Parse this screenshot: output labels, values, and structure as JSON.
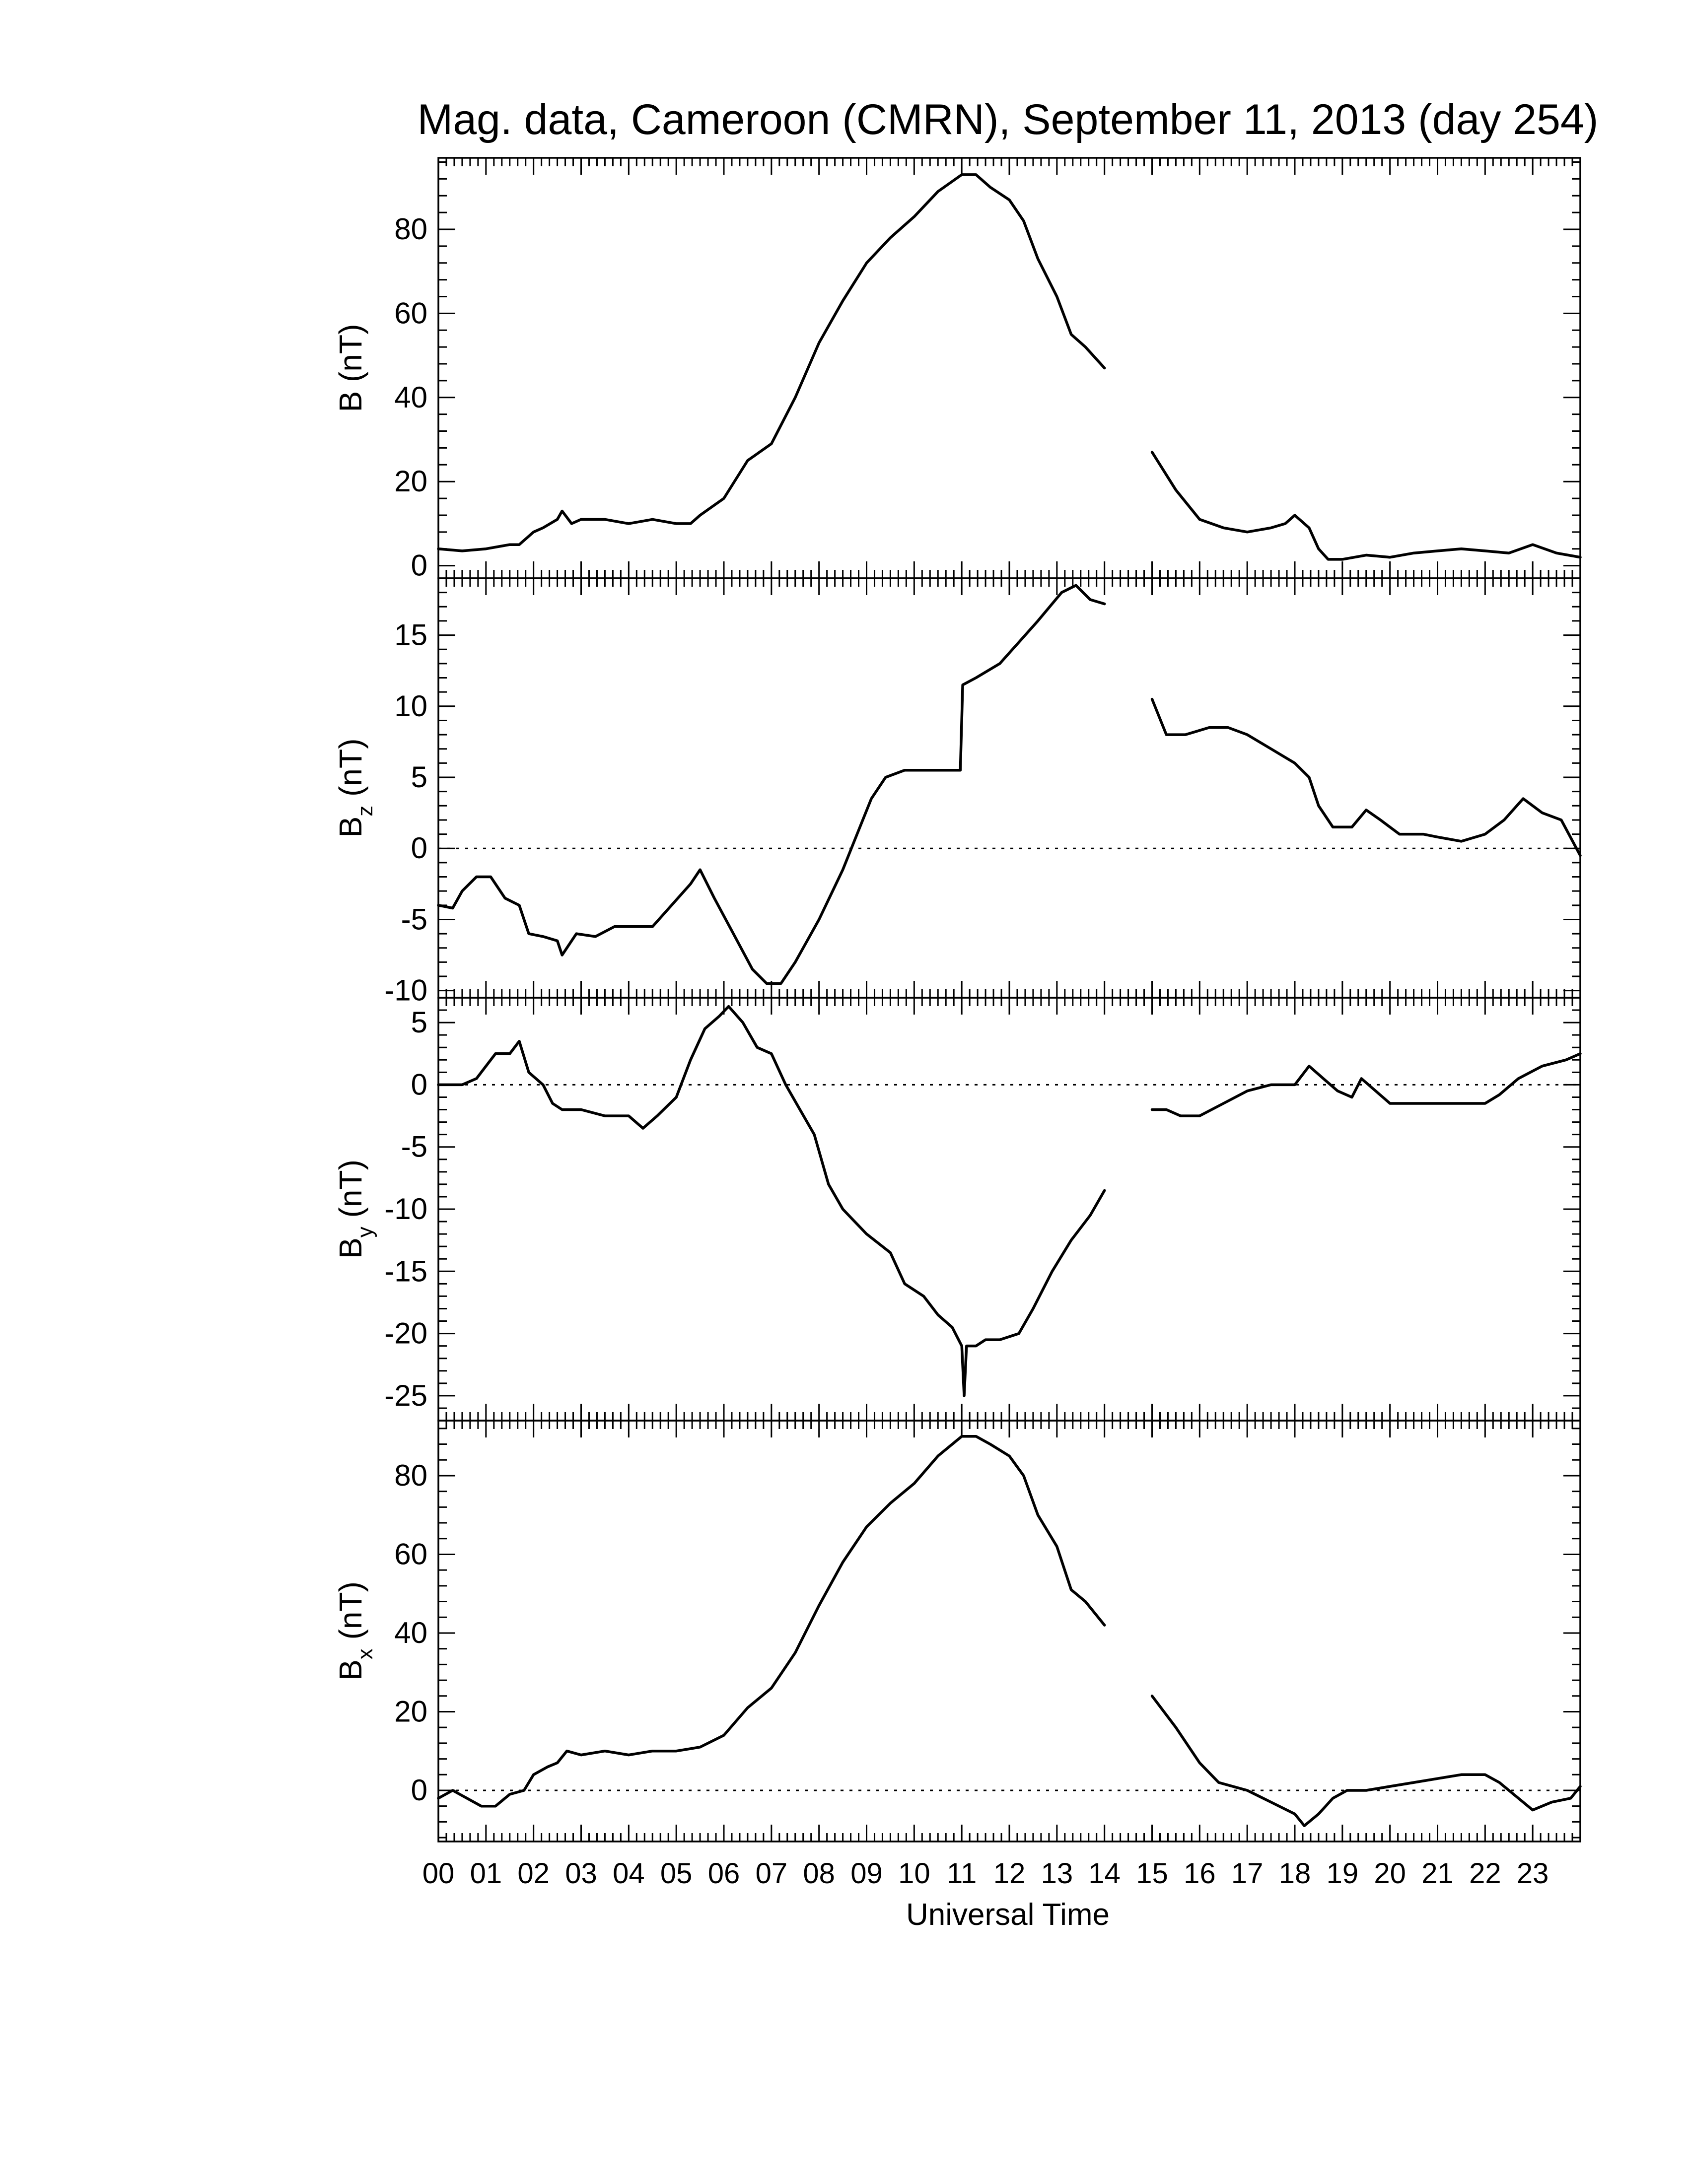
{
  "chart_data": {
    "type": "line",
    "title": "Mag. data, Cameroon (CMRN), September 11, 2013 (day 254)",
    "xlabel": "Universal Time",
    "xlim": [
      0,
      24
    ],
    "x_tick_labels": [
      "00",
      "01",
      "02",
      "03",
      "04",
      "05",
      "06",
      "07",
      "08",
      "09",
      "10",
      "11",
      "12",
      "13",
      "14",
      "15",
      "16",
      "17",
      "18",
      "19",
      "20",
      "21",
      "22",
      "23"
    ],
    "grid": false,
    "data_gap_hours": [
      14.0,
      15.0
    ],
    "panels": [
      {
        "id": "B",
        "ylabel": "B (nT)",
        "ylabel_main": "B",
        "ylabel_sub": "",
        "ylabel_unit": " (nT)",
        "ylim": [
          -3,
          97
        ],
        "yticks": [
          0,
          20,
          40,
          60,
          80
        ],
        "ytick_labels": [
          "0",
          "20",
          "40",
          "60",
          "80"
        ],
        "zero_line": false,
        "segments": [
          [
            [
              0,
              4
            ],
            [
              0.5,
              3.5
            ],
            [
              1,
              4
            ],
            [
              1.5,
              5
            ],
            [
              1.7,
              5
            ],
            [
              2,
              8
            ],
            [
              2.2,
              9
            ],
            [
              2.5,
              11
            ],
            [
              2.6,
              13
            ],
            [
              2.8,
              10
            ],
            [
              3,
              11
            ],
            [
              3.5,
              11
            ],
            [
              4,
              10
            ],
            [
              4.5,
              11
            ],
            [
              5,
              10
            ],
            [
              5.3,
              10
            ],
            [
              5.5,
              12
            ],
            [
              6,
              16
            ],
            [
              6.5,
              25
            ],
            [
              7,
              29
            ],
            [
              7.5,
              40
            ],
            [
              8,
              53
            ],
            [
              8.5,
              63
            ],
            [
              9,
              72
            ],
            [
              9.5,
              78
            ],
            [
              10,
              83
            ],
            [
              10.5,
              89
            ],
            [
              11,
              93
            ],
            [
              11.3,
              93
            ],
            [
              11.6,
              90
            ],
            [
              12,
              87
            ],
            [
              12.3,
              82
            ],
            [
              12.6,
              73
            ],
            [
              13,
              64
            ],
            [
              13.3,
              55
            ],
            [
              13.6,
              52
            ],
            [
              14,
              47
            ]
          ],
          [
            [
              15,
              27
            ],
            [
              15.5,
              18
            ],
            [
              16,
              11
            ],
            [
              16.5,
              9
            ],
            [
              17,
              8
            ],
            [
              17.5,
              9
            ],
            [
              17.8,
              10
            ],
            [
              18,
              12
            ],
            [
              18.3,
              9
            ],
            [
              18.5,
              4
            ],
            [
              18.7,
              1.5
            ],
            [
              19,
              1.5
            ],
            [
              19.5,
              2.5
            ],
            [
              20,
              2
            ],
            [
              20.5,
              3
            ],
            [
              21,
              3.5
            ],
            [
              21.5,
              4
            ],
            [
              22,
              3.5
            ],
            [
              22.5,
              3
            ],
            [
              23,
              5
            ],
            [
              23.5,
              3
            ],
            [
              24,
              2
            ]
          ]
        ]
      },
      {
        "id": "Bz",
        "ylabel": "Bz (nT)",
        "ylabel_main": "B",
        "ylabel_sub": "z",
        "ylabel_unit": " (nT)",
        "ylim": [
          -10.5,
          19
        ],
        "yticks": [
          -10,
          -5,
          0,
          5,
          10,
          15
        ],
        "ytick_labels": [
          "-10",
          "-5",
          "0",
          "5",
          "10",
          "15"
        ],
        "zero_line": true,
        "segments": [
          [
            [
              0,
              -4
            ],
            [
              0.3,
              -4.2
            ],
            [
              0.5,
              -3
            ],
            [
              0.8,
              -2
            ],
            [
              1.1,
              -2
            ],
            [
              1.4,
              -3.5
            ],
            [
              1.7,
              -4
            ],
            [
              1.9,
              -6
            ],
            [
              2.2,
              -6.2
            ],
            [
              2.5,
              -6.5
            ],
            [
              2.6,
              -7.5
            ],
            [
              2.9,
              -6
            ],
            [
              3.3,
              -6.2
            ],
            [
              3.7,
              -5.5
            ],
            [
              4,
              -5.5
            ],
            [
              4.5,
              -5.5
            ],
            [
              4.9,
              -4
            ],
            [
              5.3,
              -2.5
            ],
            [
              5.5,
              -1.5
            ],
            [
              5.8,
              -3.5
            ],
            [
              6.2,
              -6
            ],
            [
              6.6,
              -8.5
            ],
            [
              6.9,
              -9.5
            ],
            [
              7.2,
              -9.5
            ],
            [
              7.5,
              -8
            ],
            [
              8,
              -5
            ],
            [
              8.5,
              -1.5
            ],
            [
              8.8,
              1
            ],
            [
              9.1,
              3.5
            ],
            [
              9.4,
              5
            ],
            [
              9.8,
              5.5
            ],
            [
              10.2,
              5.5
            ],
            [
              10.6,
              5.5
            ],
            [
              10.97,
              5.5
            ],
            [
              11.02,
              11.5
            ],
            [
              11.3,
              12
            ],
            [
              11.8,
              13
            ],
            [
              12.2,
              14.5
            ],
            [
              12.6,
              16
            ],
            [
              13.1,
              18
            ],
            [
              13.4,
              18.5
            ],
            [
              13.7,
              17.5
            ],
            [
              14,
              17.2
            ]
          ],
          [
            [
              15,
              10.5
            ],
            [
              15.3,
              8
            ],
            [
              15.7,
              8
            ],
            [
              16.2,
              8.5
            ],
            [
              16.6,
              8.5
            ],
            [
              17,
              8
            ],
            [
              17.5,
              7
            ],
            [
              18,
              6
            ],
            [
              18.3,
              5
            ],
            [
              18.5,
              3
            ],
            [
              18.8,
              1.5
            ],
            [
              19.2,
              1.5
            ],
            [
              19.5,
              2.7
            ],
            [
              19.8,
              2
            ],
            [
              20.2,
              1
            ],
            [
              20.7,
              1
            ],
            [
              21,
              0.8
            ],
            [
              21.5,
              0.5
            ],
            [
              22,
              1
            ],
            [
              22.4,
              2
            ],
            [
              22.8,
              3.5
            ],
            [
              23.2,
              2.5
            ],
            [
              23.6,
              2
            ],
            [
              24,
              -0.5
            ]
          ]
        ]
      },
      {
        "id": "By",
        "ylabel": "By (nT)",
        "ylabel_main": "B",
        "ylabel_sub": "y",
        "ylabel_unit": " (nT)",
        "ylim": [
          -27,
          7
        ],
        "yticks": [
          -25,
          -20,
          -15,
          -10,
          -5,
          0,
          5
        ],
        "ytick_labels": [
          "-25",
          "-20",
          "-15",
          "-10",
          "-5",
          "0",
          "5"
        ],
        "zero_line": true,
        "segments": [
          [
            [
              0,
              0
            ],
            [
              0.5,
              0
            ],
            [
              0.8,
              0.5
            ],
            [
              1.2,
              2.5
            ],
            [
              1.5,
              2.5
            ],
            [
              1.7,
              3.5
            ],
            [
              1.9,
              1
            ],
            [
              2.2,
              0
            ],
            [
              2.4,
              -1.5
            ],
            [
              2.6,
              -2
            ],
            [
              3,
              -2
            ],
            [
              3.5,
              -2.5
            ],
            [
              4,
              -2.5
            ],
            [
              4.3,
              -3.5
            ],
            [
              4.6,
              -2.5
            ],
            [
              5,
              -1
            ],
            [
              5.3,
              2
            ],
            [
              5.6,
              4.5
            ],
            [
              5.9,
              5.5
            ],
            [
              6.1,
              6.3
            ],
            [
              6.4,
              5
            ],
            [
              6.7,
              3
            ],
            [
              7,
              2.5
            ],
            [
              7.3,
              0
            ],
            [
              7.6,
              -2
            ],
            [
              7.9,
              -4
            ],
            [
              8.2,
              -8
            ],
            [
              8.5,
              -10
            ],
            [
              9,
              -12
            ],
            [
              9.5,
              -13.5
            ],
            [
              9.8,
              -16
            ],
            [
              10.2,
              -17
            ],
            [
              10.5,
              -18.5
            ],
            [
              10.8,
              -19.5
            ],
            [
              11,
              -21
            ],
            [
              11.05,
              -25
            ],
            [
              11.1,
              -21
            ],
            [
              11.3,
              -21
            ],
            [
              11.5,
              -20.5
            ],
            [
              11.8,
              -20.5
            ],
            [
              12.2,
              -20
            ],
            [
              12.5,
              -18
            ],
            [
              12.9,
              -15
            ],
            [
              13.3,
              -12.5
            ],
            [
              13.7,
              -10.5
            ],
            [
              14,
              -8.5
            ]
          ],
          [
            [
              15,
              -2
            ],
            [
              15.3,
              -2
            ],
            [
              15.6,
              -2.5
            ],
            [
              16,
              -2.5
            ],
            [
              16.5,
              -1.5
            ],
            [
              17,
              -0.5
            ],
            [
              17.5,
              0
            ],
            [
              18,
              0
            ],
            [
              18.3,
              1.5
            ],
            [
              18.6,
              0.5
            ],
            [
              18.9,
              -0.5
            ],
            [
              19.2,
              -1
            ],
            [
              19.4,
              0.5
            ],
            [
              19.7,
              -0.5
            ],
            [
              20,
              -1.5
            ],
            [
              20.5,
              -1.5
            ],
            [
              21,
              -1.5
            ],
            [
              21.5,
              -1.5
            ],
            [
              22,
              -1.5
            ],
            [
              22.3,
              -0.8
            ],
            [
              22.7,
              0.5
            ],
            [
              23.2,
              1.5
            ],
            [
              23.7,
              2
            ],
            [
              24,
              2.5
            ]
          ]
        ]
      },
      {
        "id": "Bx",
        "ylabel": "Bx (nT)",
        "ylabel_main": "B",
        "ylabel_sub": "x",
        "ylabel_unit": " (nT)",
        "ylim": [
          -13,
          94
        ],
        "yticks": [
          0,
          20,
          40,
          60,
          80
        ],
        "ytick_labels": [
          "0",
          "20",
          "40",
          "60",
          "80"
        ],
        "zero_line": true,
        "segments": [
          [
            [
              0,
              -2
            ],
            [
              0.3,
              0
            ],
            [
              0.6,
              -2
            ],
            [
              0.9,
              -4
            ],
            [
              1.2,
              -4
            ],
            [
              1.5,
              -1
            ],
            [
              1.8,
              0
            ],
            [
              2,
              4
            ],
            [
              2.3,
              6
            ],
            [
              2.5,
              7
            ],
            [
              2.7,
              10
            ],
            [
              3,
              9
            ],
            [
              3.5,
              10
            ],
            [
              4,
              9
            ],
            [
              4.5,
              10
            ],
            [
              5,
              10
            ],
            [
              5.5,
              11
            ],
            [
              6,
              14
            ],
            [
              6.5,
              21
            ],
            [
              7,
              26
            ],
            [
              7.5,
              35
            ],
            [
              8,
              47
            ],
            [
              8.5,
              58
            ],
            [
              9,
              67
            ],
            [
              9.5,
              73
            ],
            [
              10,
              78
            ],
            [
              10.5,
              85
            ],
            [
              11,
              90
            ],
            [
              11.3,
              90
            ],
            [
              11.6,
              88
            ],
            [
              12,
              85
            ],
            [
              12.3,
              80
            ],
            [
              12.6,
              70
            ],
            [
              13,
              62
            ],
            [
              13.3,
              51
            ],
            [
              13.6,
              48
            ],
            [
              14,
              42
            ]
          ],
          [
            [
              15,
              24
            ],
            [
              15.5,
              16
            ],
            [
              16,
              7
            ],
            [
              16.4,
              2
            ],
            [
              17,
              0
            ],
            [
              17.5,
              -3
            ],
            [
              18,
              -6
            ],
            [
              18.2,
              -9
            ],
            [
              18.5,
              -6
            ],
            [
              18.8,
              -2
            ],
            [
              19.1,
              0
            ],
            [
              19.5,
              0
            ],
            [
              20,
              1
            ],
            [
              20.5,
              2
            ],
            [
              21,
              3
            ],
            [
              21.5,
              4
            ],
            [
              22,
              4
            ],
            [
              22.3,
              2
            ],
            [
              22.6,
              -1
            ],
            [
              23,
              -5
            ],
            [
              23.4,
              -3
            ],
            [
              23.8,
              -2
            ],
            [
              24,
              1
            ]
          ]
        ]
      }
    ]
  }
}
